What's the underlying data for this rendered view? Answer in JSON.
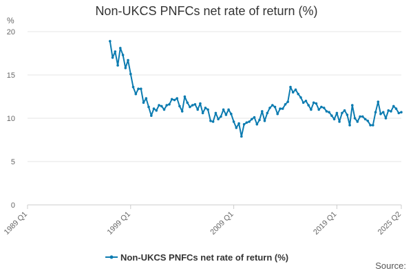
{
  "title": "Non-UKCS PNFCs net rate of return (%)",
  "source_label": "Source:",
  "colors": {
    "series": "#0b7bb0",
    "grid": "#e6e6e6",
    "axis": "#cccccc"
  },
  "chart_data": {
    "type": "line",
    "title": "Non-UKCS PNFCs net rate of return (%)",
    "ylabel": "%",
    "xlabel": "",
    "ylim": [
      0,
      20
    ],
    "y_ticks": [
      0,
      5,
      10,
      15,
      20
    ],
    "x_range": [
      "1989 Q1",
      "2025 Q2"
    ],
    "x_ticks": [
      "1989 Q1",
      "1999 Q1",
      "2009 Q1",
      "2019 Q1",
      "2025 Q2"
    ],
    "grid": true,
    "legend": "bottom",
    "series": [
      {
        "name": "Non-UKCS PNFCs net rate of return (%)",
        "x": [
          "1997 Q1",
          "1997 Q2",
          "1997 Q3",
          "1997 Q4",
          "1998 Q1",
          "1998 Q2",
          "1998 Q3",
          "1998 Q4",
          "1999 Q1",
          "1999 Q2",
          "1999 Q3",
          "1999 Q4",
          "2000 Q1",
          "2000 Q2",
          "2000 Q3",
          "2000 Q4",
          "2001 Q1",
          "2001 Q2",
          "2001 Q3",
          "2001 Q4",
          "2002 Q1",
          "2002 Q2",
          "2002 Q3",
          "2002 Q4",
          "2003 Q1",
          "2003 Q2",
          "2003 Q3",
          "2003 Q4",
          "2004 Q1",
          "2004 Q2",
          "2004 Q3",
          "2004 Q4",
          "2005 Q1",
          "2005 Q2",
          "2005 Q3",
          "2005 Q4",
          "2006 Q1",
          "2006 Q2",
          "2006 Q3",
          "2006 Q4",
          "2007 Q1",
          "2007 Q2",
          "2007 Q3",
          "2007 Q4",
          "2008 Q1",
          "2008 Q2",
          "2008 Q3",
          "2008 Q4",
          "2009 Q1",
          "2009 Q2",
          "2009 Q3",
          "2009 Q4",
          "2010 Q1",
          "2010 Q2",
          "2010 Q3",
          "2010 Q4",
          "2011 Q1",
          "2011 Q2",
          "2011 Q3",
          "2011 Q4",
          "2012 Q1",
          "2012 Q2",
          "2012 Q3",
          "2012 Q4",
          "2013 Q1",
          "2013 Q2",
          "2013 Q3",
          "2013 Q4",
          "2014 Q1",
          "2014 Q2",
          "2014 Q3",
          "2014 Q4",
          "2015 Q1",
          "2015 Q2",
          "2015 Q3",
          "2015 Q4",
          "2016 Q1",
          "2016 Q2",
          "2016 Q3",
          "2016 Q4",
          "2017 Q1",
          "2017 Q2",
          "2017 Q3",
          "2017 Q4",
          "2018 Q1",
          "2018 Q2",
          "2018 Q3",
          "2018 Q4",
          "2019 Q1",
          "2019 Q2",
          "2019 Q3",
          "2019 Q4",
          "2020 Q1",
          "2020 Q2",
          "2020 Q3",
          "2020 Q4",
          "2021 Q1",
          "2021 Q2",
          "2021 Q3",
          "2021 Q4",
          "2022 Q1",
          "2022 Q2",
          "2022 Q3",
          "2022 Q4",
          "2023 Q1",
          "2023 Q2",
          "2023 Q3",
          "2023 Q4",
          "2024 Q1",
          "2024 Q2",
          "2024 Q3",
          "2024 Q4",
          "2025 Q1",
          "2025 Q2"
        ],
        "y": [
          18.9,
          17.0,
          17.7,
          16.1,
          18.1,
          17.3,
          15.8,
          16.7,
          15.1,
          13.6,
          12.8,
          13.4,
          13.4,
          11.8,
          12.3,
          11.3,
          10.3,
          11.1,
          10.9,
          11.5,
          11.4,
          11.0,
          11.5,
          11.6,
          12.2,
          12.1,
          12.3,
          11.4,
          10.8,
          12.5,
          11.8,
          11.3,
          11.5,
          11.6,
          11.0,
          11.7,
          10.6,
          11.2,
          11.0,
          9.7,
          9.6,
          10.6,
          9.9,
          10.2,
          11.0,
          10.4,
          11.0,
          10.5,
          9.6,
          8.9,
          9.4,
          7.9,
          9.3,
          9.5,
          9.6,
          9.9,
          10.1,
          9.3,
          9.8,
          10.8,
          9.7,
          10.6,
          11.2,
          11.5,
          11.3,
          10.5,
          11.1,
          11.1,
          11.6,
          11.9,
          13.6,
          13.0,
          13.3,
          12.8,
          12.4,
          11.8,
          12.0,
          11.5,
          11.0,
          11.8,
          11.7,
          11.0,
          11.3,
          11.2,
          10.8,
          10.7,
          10.3,
          9.9,
          10.6,
          9.6,
          10.6,
          10.9,
          10.4,
          9.2,
          11.5,
          10.0,
          9.6,
          10.2,
          10.2,
          9.9,
          9.7,
          9.2,
          9.2,
          10.7,
          11.9,
          10.5,
          10.7,
          10.0,
          10.9,
          10.8,
          11.4,
          11.1,
          10.6,
          10.7
        ]
      }
    ]
  }
}
